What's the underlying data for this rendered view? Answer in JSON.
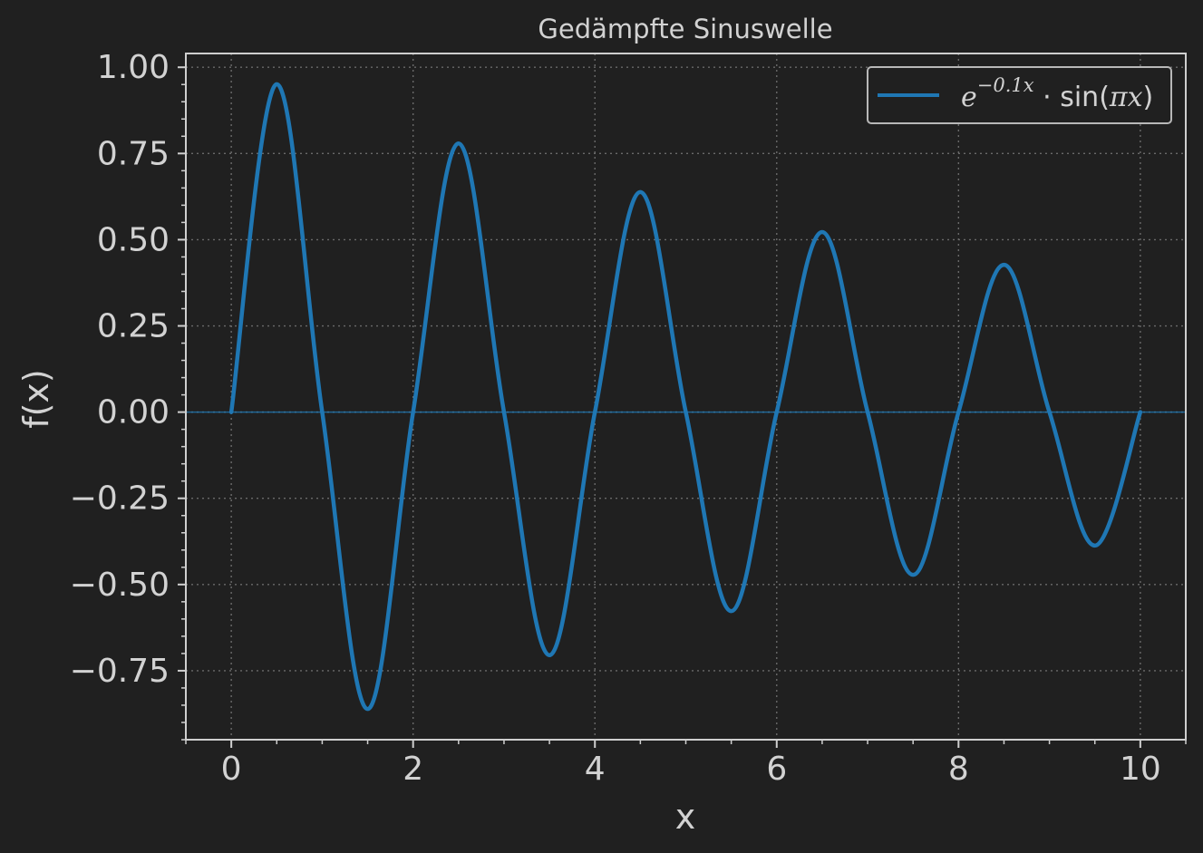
{
  "chart_data": {
    "type": "line",
    "title": "Gedämpfte Sinuswelle",
    "xlabel": "x",
    "ylabel": "f(x)",
    "xlim": [
      -0.5,
      10.5
    ],
    "ylim": [
      -0.95,
      1.04
    ],
    "x_ticks": [
      0,
      2,
      4,
      6,
      8,
      10
    ],
    "x_tick_labels": [
      "0",
      "2",
      "4",
      "6",
      "8",
      "10"
    ],
    "y_ticks": [
      1.0,
      0.75,
      0.5,
      0.25,
      0.0,
      -0.25,
      -0.5,
      -0.75
    ],
    "y_tick_labels": [
      "1.00",
      "0.75",
      "0.50",
      "0.25",
      "0.00",
      "−0.25",
      "−0.50",
      "−0.75"
    ],
    "grid": true,
    "legend_position": "top-right",
    "reference_line_y": 0,
    "series": [
      {
        "name": "e^{−0.1x} · sin(πx)",
        "color": "#1f77b4",
        "x": [
          0,
          0.5,
          1,
          1.5,
          2,
          2.5,
          3,
          3.5,
          4,
          4.5,
          5,
          5.5,
          6,
          6.5,
          7,
          7.5,
          8,
          8.5,
          9,
          9.5,
          10
        ],
        "y": [
          0,
          0.951,
          0,
          -0.861,
          0,
          0.779,
          0,
          -0.705,
          0,
          0.638,
          0,
          -0.577,
          0,
          0.522,
          0,
          -0.472,
          0,
          0.427,
          0,
          -0.387,
          0
        ]
      }
    ],
    "legend": {
      "base": "e",
      "exponent": "−0.1x",
      "rest": " · sin(",
      "var": "πx",
      "close": ")"
    }
  },
  "colors": {
    "background": "#202020",
    "axes": "#cfcfcf",
    "grid": "#6a6a6a",
    "line": "#1f77b4"
  }
}
